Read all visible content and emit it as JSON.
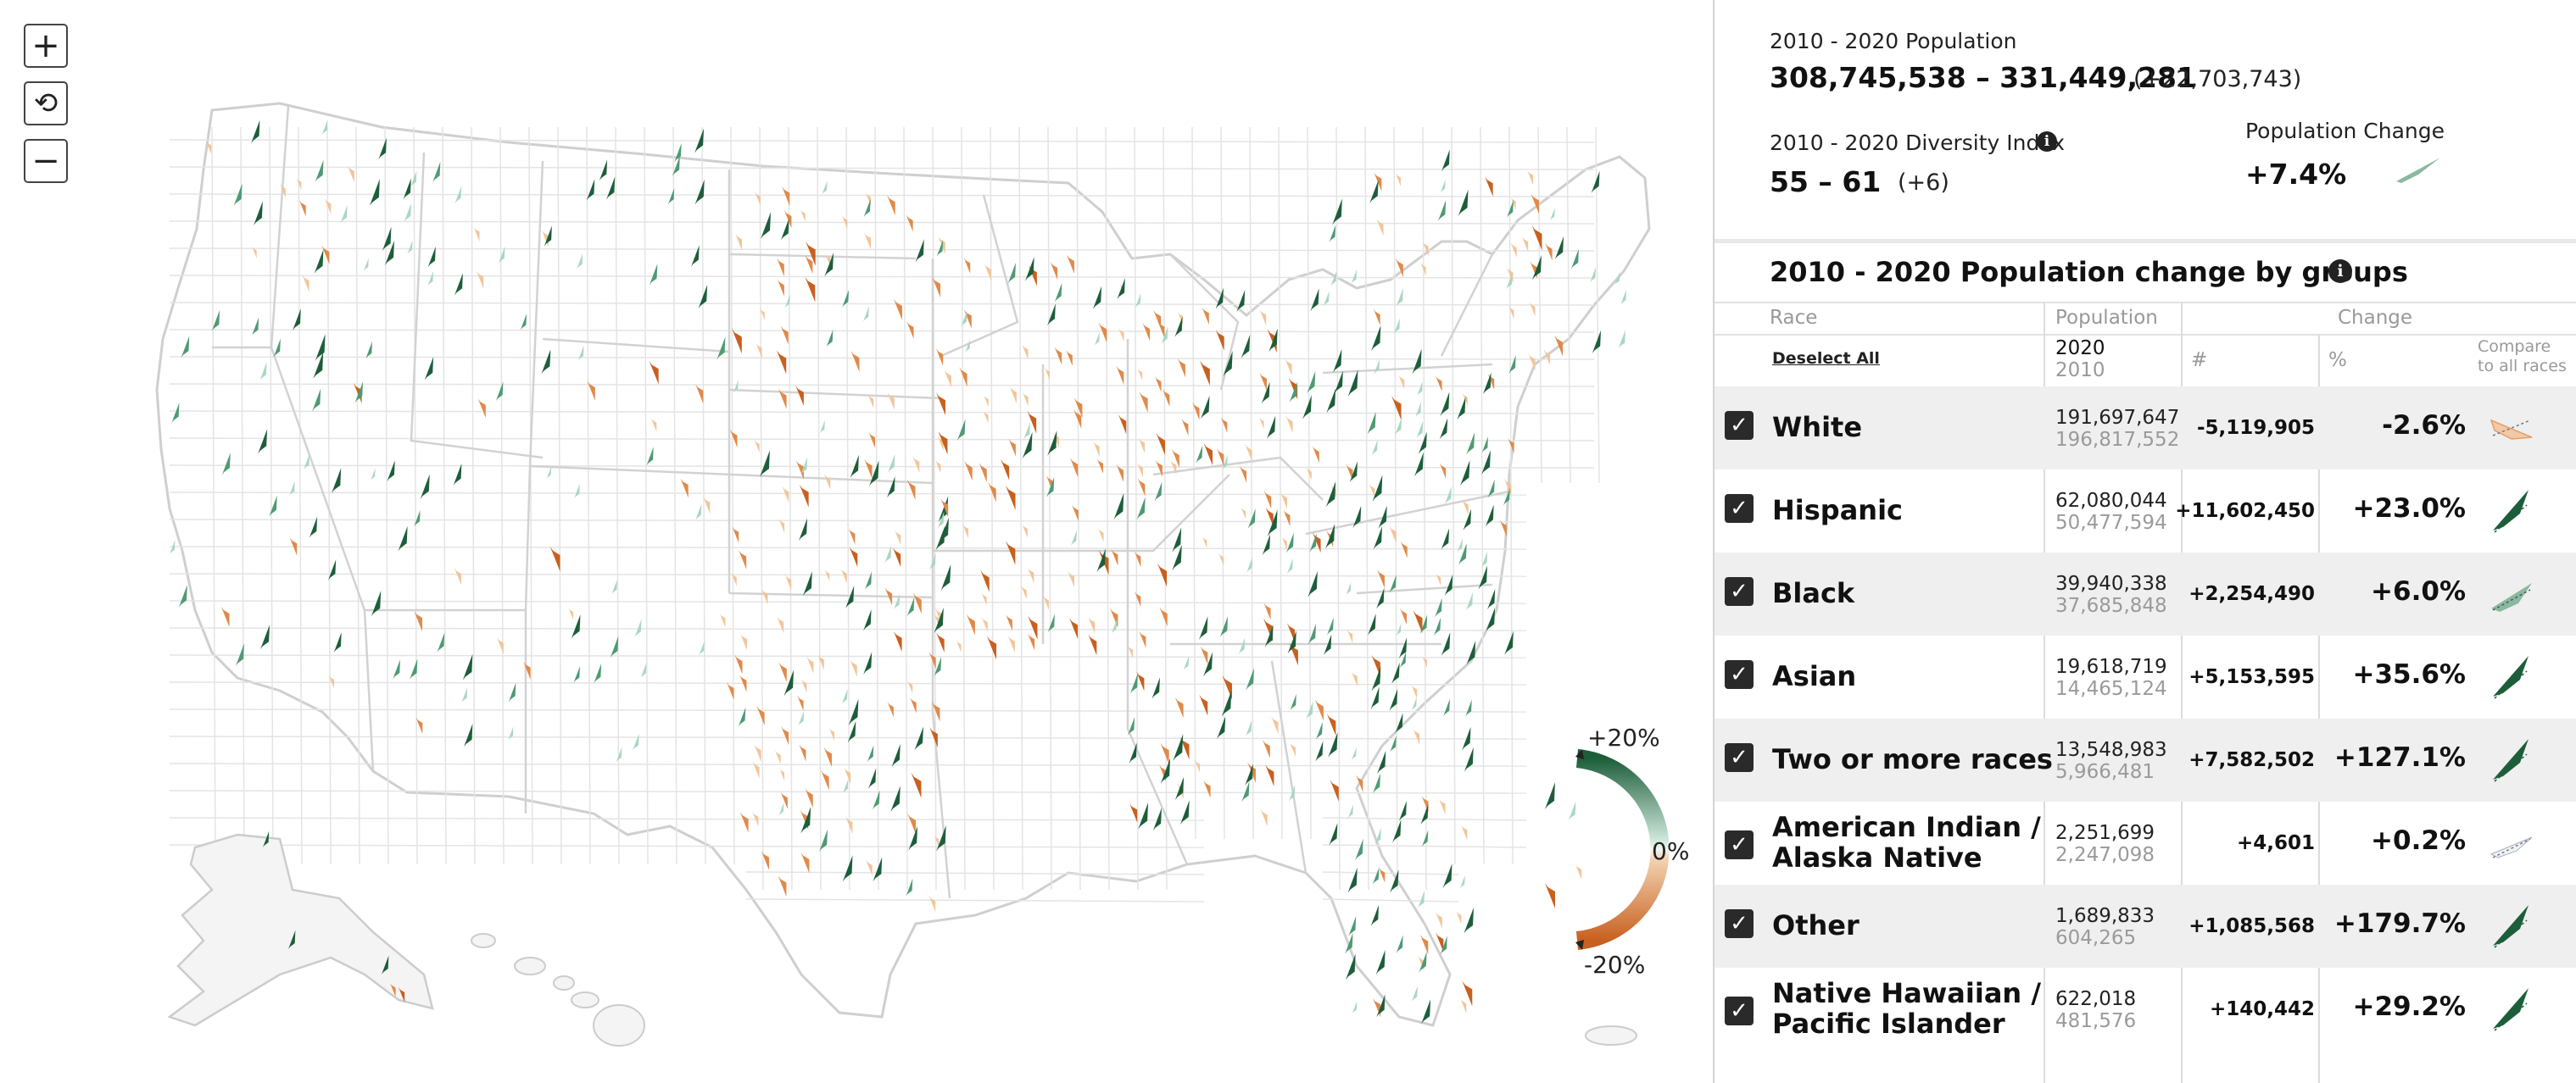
{
  "map": {
    "controls": {
      "zoom_in": "+",
      "reset": "⟲",
      "zoom_out": "−"
    },
    "legend": {
      "top_label": "+20%",
      "mid_label": "0%",
      "bottom_label": "-20%",
      "positive_color": "#1d5e3a",
      "light_positive_color": "#8ecab0",
      "negative_color": "#c8601f",
      "light_negative_color": "#f0c79a"
    },
    "arrow_colors": {
      "strong_up": "#1d5e3a",
      "mid_up": "#4e9a73",
      "light_up": "#a9d7c0",
      "light_down": "#f2c59a",
      "mid_down": "#e08a4a",
      "strong_down": "#c8601f"
    }
  },
  "summary": {
    "population_label": "2010 - 2020 Population",
    "population_range": "308,745,538 – 331,449,281",
    "population_delta": "(+22,703,743)",
    "diversity_label": "2010 - 2020 Diversity Index",
    "diversity_range": "55 – 61",
    "diversity_delta": "(+6)",
    "pop_change_label": "Population Change",
    "pop_change_value": "+7.4%",
    "info_glyph": "i"
  },
  "groups": {
    "title": "2010 - 2020 Population change by groups",
    "headers": {
      "race": "Race",
      "population": "Population",
      "change": "Change",
      "deselect": "Deselect All",
      "year_new": "2020",
      "year_old": "2010",
      "count": "#",
      "percent": "%",
      "compare": "Compare\nto all races"
    },
    "check_glyph": "✓",
    "rows": [
      {
        "race": "White",
        "pop2020": "191,697,647",
        "pop2010": "196,817,552",
        "change": "-5,119,905",
        "percent": "-2.6%",
        "trend": "down"
      },
      {
        "race": "Hispanic",
        "pop2020": "62,080,044",
        "pop2010": "50,477,594",
        "change": "+11,602,450",
        "percent": "+23.0%",
        "trend": "up"
      },
      {
        "race": "Black",
        "pop2020": "39,940,338",
        "pop2010": "37,685,848",
        "change": "+2,254,490",
        "percent": "+6.0%",
        "trend": "light"
      },
      {
        "race": "Asian",
        "pop2020": "19,618,719",
        "pop2010": "14,465,124",
        "change": "+5,153,595",
        "percent": "+35.6%",
        "trend": "up"
      },
      {
        "race": "Two or more races",
        "pop2020": "13,548,983",
        "pop2010": "5,966,481",
        "change": "+7,582,502",
        "percent": "+127.1%",
        "trend": "up"
      },
      {
        "race": "American Indian /\nAlaska Native",
        "pop2020": "2,251,699",
        "pop2010": "2,247,098",
        "change": "+4,601",
        "percent": "+0.2%",
        "trend": "flat"
      },
      {
        "race": "Other",
        "pop2020": "1,689,833",
        "pop2010": "604,265",
        "change": "+1,085,568",
        "percent": "+179.7%",
        "trend": "up"
      },
      {
        "race": "Native Hawaiian /\nPacific Islander",
        "pop2020": "622,018",
        "pop2010": "481,576",
        "change": "+140,442",
        "percent": "+29.2%",
        "trend": "up"
      }
    ]
  }
}
